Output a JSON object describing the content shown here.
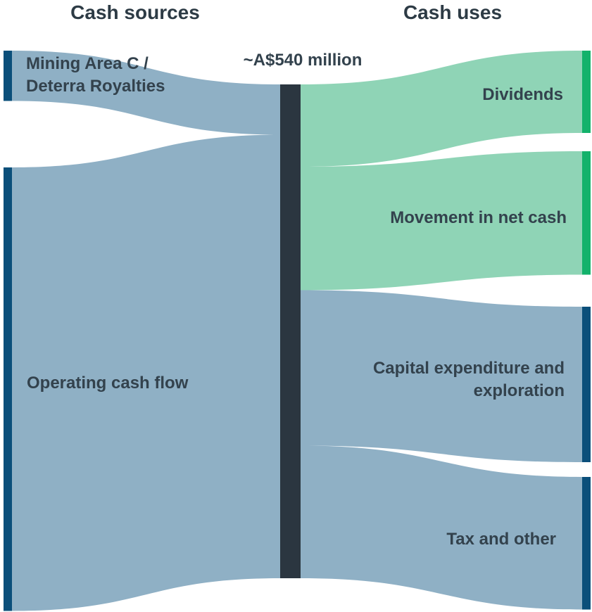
{
  "chart_data": {
    "type": "sankey",
    "source_heading": "Cash sources",
    "use_heading": "Cash uses",
    "center_label": "~A$540 million",
    "center_color": "#2b3640",
    "sources": [
      {
        "name": "Mining Area C / Deterra Royalties",
        "value": 55,
        "color": "#0b4f7a",
        "flow_color": "#8fb0c5"
      },
      {
        "name": "Operating cash flow",
        "value": 485,
        "color": "#0b4f7a",
        "flow_color": "#8fb0c5"
      }
    ],
    "uses": [
      {
        "name": "Dividends",
        "value": 90,
        "color": "#13b26b",
        "flow_color": "#8fd4b6"
      },
      {
        "name": "Movement in net cash",
        "value": 135,
        "color": "#13b26b",
        "flow_color": "#8fd4b6"
      },
      {
        "name": "Capital expenditure and exploration",
        "value": 170,
        "color": "#0b4f7a",
        "flow_color": "#8fb0c5"
      },
      {
        "name": "Tax and other",
        "value": 145,
        "color": "#0b4f7a",
        "flow_color": "#8fb0c5"
      }
    ]
  }
}
